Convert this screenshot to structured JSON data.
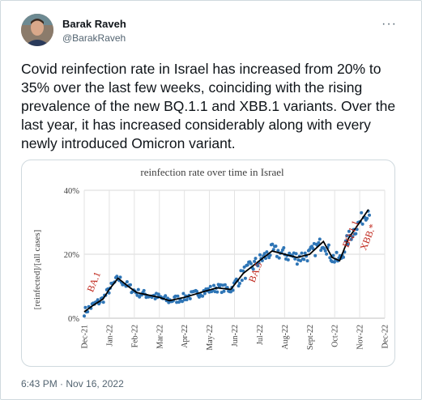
{
  "tweet": {
    "author_name": "Barak Raveh",
    "author_handle": "@BarakRaveh",
    "more_icon": "more-horizontal-icon",
    "text": "Covid reinfection rate in Israel has increased from 20% to 35% over the last few weeks, coinciding with the rising prevalence of the new BQ.1.1 and XBB.1 variants. Over the last year, it has increased considerably along with every newly introduced Omicron variant.",
    "timestamp": "6:43 PM · Nov 16, 2022"
  },
  "chart_data": {
    "type": "scatter",
    "title": "reinfection rate over time in Israel",
    "ylabel": "[reinfected]/[all cases]",
    "xlabel": "",
    "ylim": [
      0,
      40
    ],
    "yticks": [
      "0%",
      "20%",
      "40%"
    ],
    "categories": [
      "Dec-21",
      "Jan-22",
      "Feb-22",
      "Mar-22",
      "Apr-22",
      "May-22",
      "Jun-22",
      "Jul-22",
      "Aug-22",
      "Sept-22",
      "Oct-22",
      "Nov-22",
      "Dec-22"
    ],
    "grid": true,
    "trend": [
      {
        "x": "Dec-21",
        "y": 2
      },
      {
        "x": "Dec-21+",
        "y": 4
      },
      {
        "x": "Jan-22-",
        "y": 6
      },
      {
        "x": "Jan-22",
        "y": 9
      },
      {
        "x": "Jan-22+",
        "y": 12.5
      },
      {
        "x": "Feb-22-",
        "y": 10
      },
      {
        "x": "Feb-22",
        "y": 8
      },
      {
        "x": "Mar-22",
        "y": 6.5
      },
      {
        "x": "Mar-22+",
        "y": 5.5
      },
      {
        "x": "Apr-22",
        "y": 6.5
      },
      {
        "x": "May-22",
        "y": 8.5
      },
      {
        "x": "May-22+",
        "y": 9.5
      },
      {
        "x": "Jun-22",
        "y": 9
      },
      {
        "x": "Jun-22+",
        "y": 14
      },
      {
        "x": "Jul-22",
        "y": 18
      },
      {
        "x": "Jul-22+",
        "y": 21
      },
      {
        "x": "Aug-22",
        "y": 20
      },
      {
        "x": "Aug-22+",
        "y": 19
      },
      {
        "x": "Sept-22",
        "y": 20
      },
      {
        "x": "Sept-22+",
        "y": 24
      },
      {
        "x": "Oct-22-",
        "y": 19
      },
      {
        "x": "Oct-22",
        "y": 18
      },
      {
        "x": "Oct-22+",
        "y": 25
      },
      {
        "x": "Nov-22",
        "y": 30
      },
      {
        "x": "Nov-22+",
        "y": 34
      }
    ],
    "annotations": [
      {
        "text": "BA.1",
        "month": 0.5,
        "y": 11,
        "color": "#c0281d"
      },
      {
        "text": "BA.5",
        "month": 6.95,
        "y": 14,
        "color": "#c0281d"
      },
      {
        "text": "BQ.1.1",
        "month": 10.75,
        "y": 26,
        "color": "#c0281d"
      },
      {
        "text": "XBB.*",
        "month": 11.45,
        "y": 25,
        "color": "#c0281d"
      }
    ],
    "series_color": "#2e75b6",
    "trend_color": "#000000"
  }
}
